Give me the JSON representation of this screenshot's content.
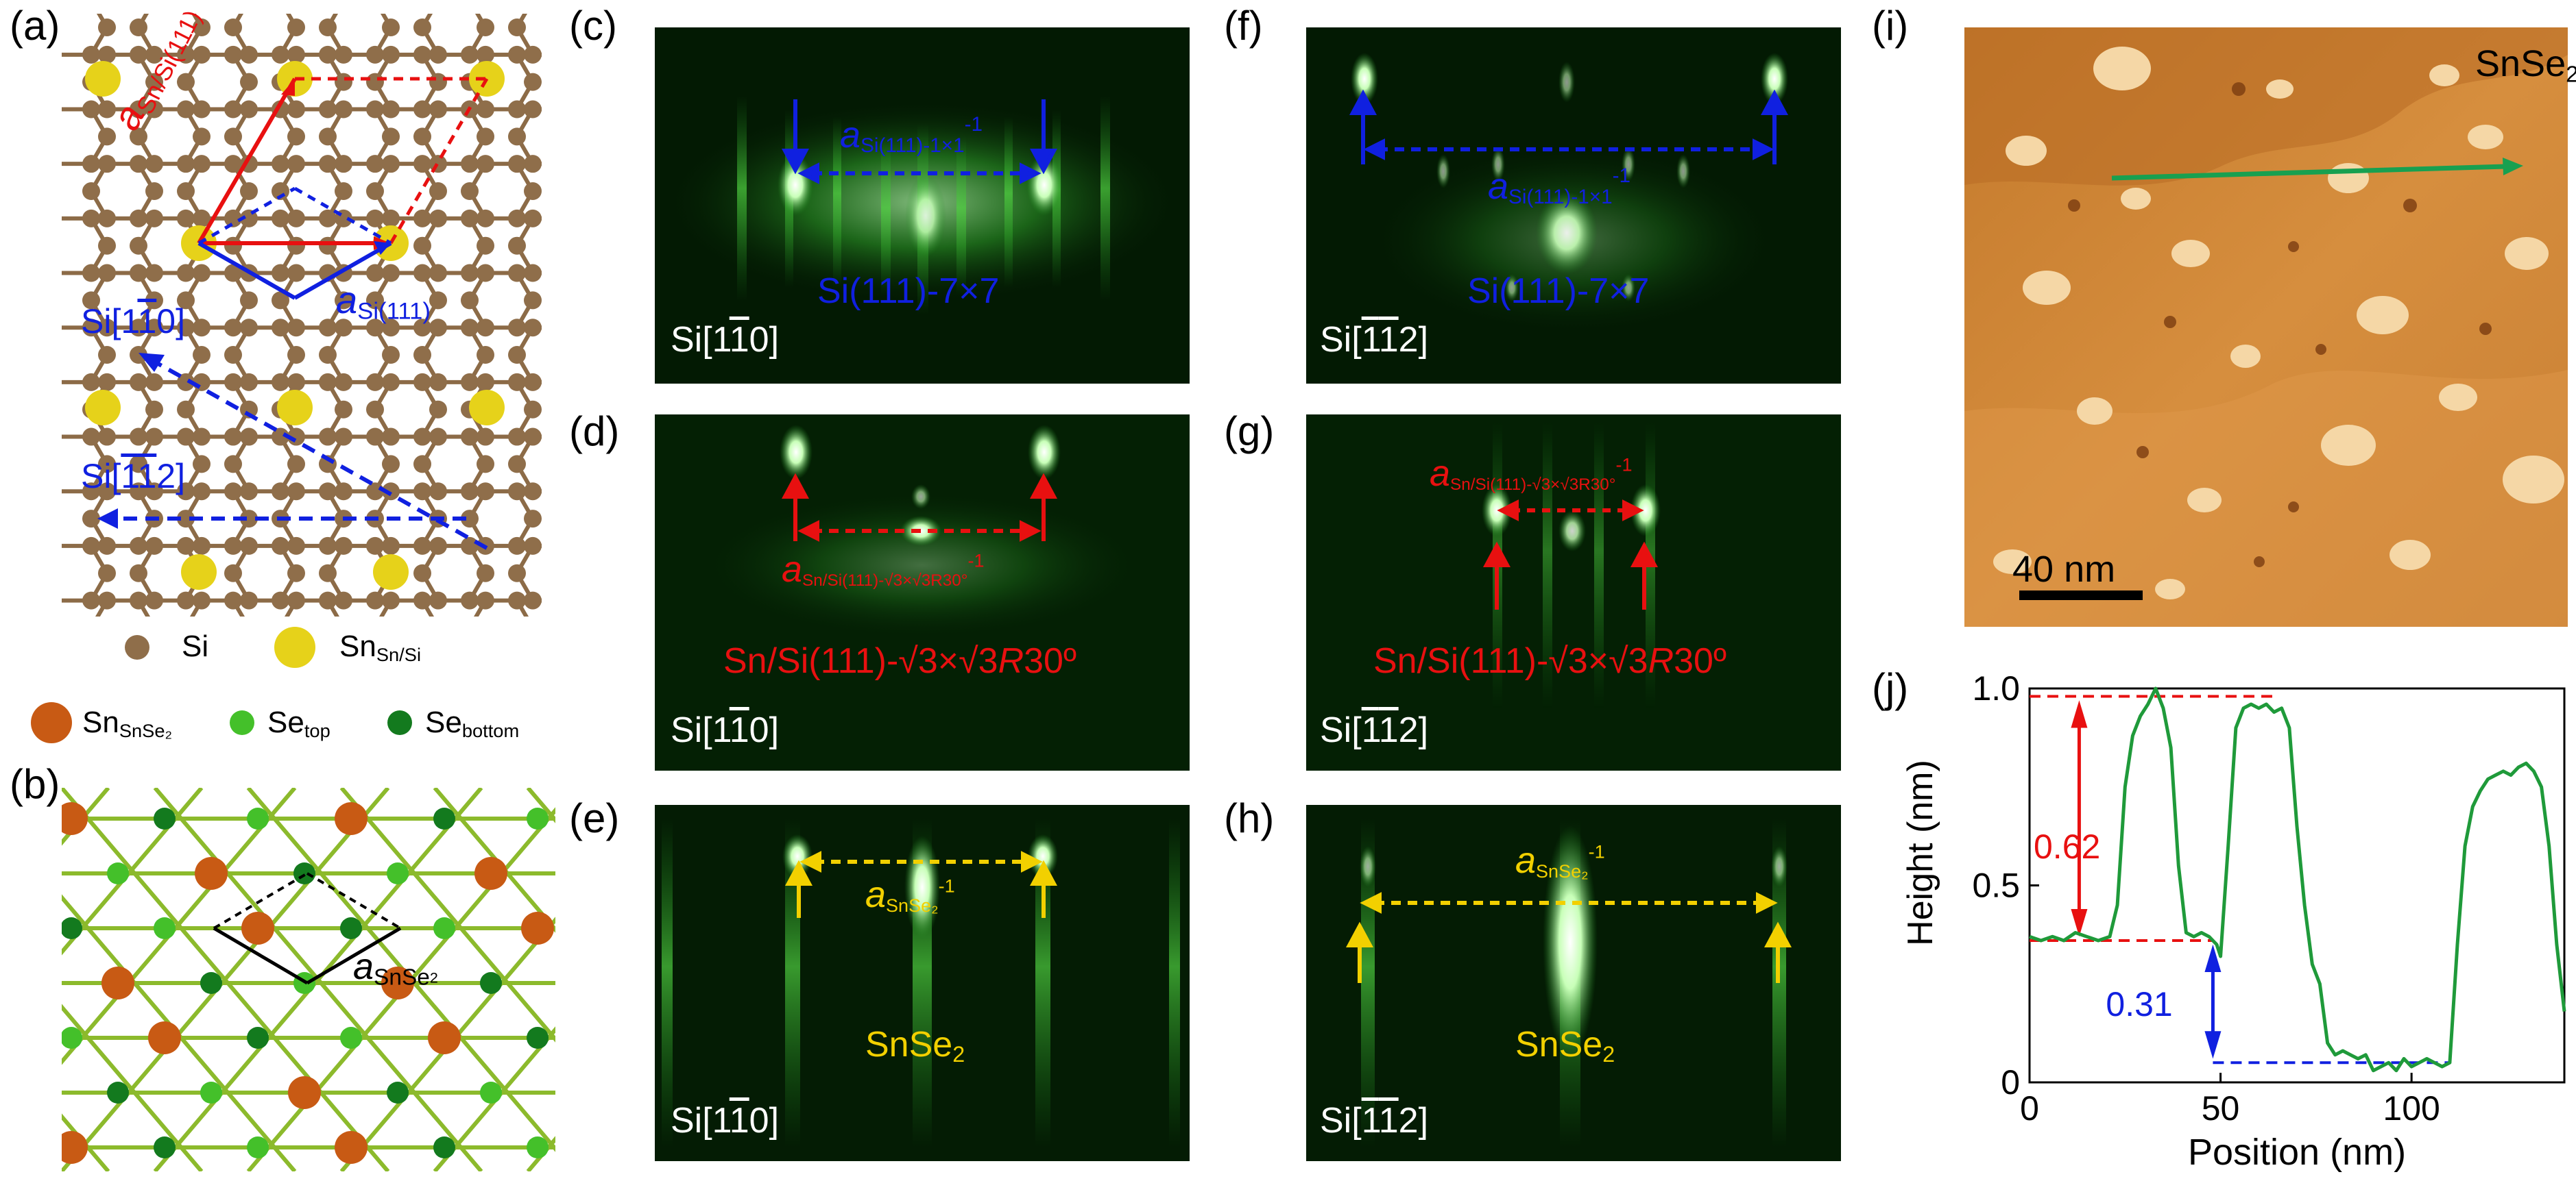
{
  "panel_labels": {
    "a": "(a)",
    "b": "(b)",
    "c": "(c)",
    "d": "(d)",
    "e": "(e)",
    "f": "(f)",
    "g": "(g)",
    "h": "(h)",
    "i": "(i)",
    "j": "(j)"
  },
  "panel_a": {
    "lattice_sn_si": "a",
    "lattice_sn_si_sub": "Sn/Si(111)",
    "lattice_si": "a",
    "lattice_si_sub": "Si(111)",
    "dir_1": "Si[1",
    "dir_1_bar": "1",
    "dir_1_end": "0]",
    "dir_2": "Si[",
    "dir_2_bar1": "1",
    "dir_2_bar2": "1",
    "dir_2_end": "2]",
    "legend": [
      {
        "text": "Si",
        "color": "#8f6e4a"
      },
      {
        "text": "Sn",
        "sub": "Sn/Si",
        "color": "#e6d21a"
      }
    ],
    "legend2": [
      {
        "text": "Sn",
        "sub": "SnSe₂",
        "color": "#c85a14"
      },
      {
        "text": "Se",
        "sub": "top",
        "color": "#44c02a"
      },
      {
        "text": "Se",
        "sub": "bottom",
        "color": "#137a1e"
      }
    ]
  },
  "panel_b": {
    "lattice": "a",
    "lattice_sub": "SnSe"
  },
  "rheed": {
    "c": {
      "dir_pre": "Si[1",
      "dir_bar": "1",
      "dir_post": "0]",
      "title": "Si(111)-7×7",
      "spacing": "a",
      "spacing_sub": "Si(111)-1×1",
      "spacing_sup": "-1",
      "color": "blue"
    },
    "d": {
      "dir_pre": "Si[1",
      "dir_bar": "1",
      "dir_post": "0]",
      "title_pre": "Sn/Si(111)-√3×√3",
      "title_r": "R",
      "title_post": "30º",
      "spacing": "a",
      "spacing_sub": "Sn/Si(111)-√3×√3R30°",
      "spacing_sup": "-1",
      "color": "red"
    },
    "e": {
      "dir_pre": "Si[1",
      "dir_bar": "1",
      "dir_post": "0]",
      "title": "SnSe",
      "title_sub": "2",
      "spacing": "a",
      "spacing_sub": "SnSe₂",
      "spacing_sup": "-1",
      "color": "yellow"
    },
    "f": {
      "dir_pre": "Si[",
      "dir_bar1": "1",
      "dir_bar2": "1",
      "dir_post": "2]",
      "title": "Si(111)-7×7",
      "spacing": "a",
      "spacing_sub": "Si(111)-1×1",
      "spacing_sup": "-1",
      "color": "blue"
    },
    "g": {
      "dir_pre": "Si[",
      "dir_bar1": "1",
      "dir_bar2": "1",
      "dir_post": "2]",
      "title_pre": "Sn/Si(111)-√3×√3",
      "title_r": "R",
      "title_post": "30º",
      "spacing": "a",
      "spacing_sub": "Sn/Si(111)-√3×√3R30°",
      "spacing_sup": "-1",
      "color": "red"
    },
    "h": {
      "dir_pre": "Si[",
      "dir_bar1": "1",
      "dir_bar2": "1",
      "dir_post": "2]",
      "title": "SnSe",
      "title_sub": "2",
      "spacing": "a",
      "spacing_sub": "SnSe₂",
      "spacing_sup": "-1",
      "color": "yellow"
    }
  },
  "stm": {
    "label": "SnSe",
    "label_sub": "2",
    "scalebar": "40 nm"
  },
  "annotations": {
    "step1": "0.62",
    "step2": "0.31"
  },
  "chart_data": {
    "type": "line",
    "title": "",
    "xlabel": "Position (nm)",
    "ylabel": "Height (nm)",
    "xlim": [
      0,
      140
    ],
    "ylim": [
      0,
      1.0
    ],
    "xticks": [
      0,
      50,
      100
    ],
    "yticks": [
      0,
      0.5,
      1.0
    ],
    "ytick_labels": [
      "0",
      "0.5",
      "1.0"
    ],
    "grid": false,
    "series": [
      {
        "color": "#1f9a3a",
        "x": [
          0,
          3,
          6,
          9,
          12,
          15,
          18,
          21,
          23,
          25,
          27,
          29,
          31,
          33,
          35,
          37,
          39,
          41,
          43,
          45,
          47,
          49,
          50,
          52,
          54,
          56,
          58,
          60,
          62,
          64,
          66,
          68,
          70,
          72,
          74,
          76,
          78,
          80,
          82,
          84,
          86,
          88,
          90,
          92,
          94,
          96,
          98,
          100,
          102,
          104,
          106,
          108,
          110,
          112,
          114,
          116,
          118,
          120,
          122,
          124,
          126,
          128,
          130,
          132,
          134,
          136,
          138,
          140
        ],
        "y": [
          0.37,
          0.36,
          0.37,
          0.36,
          0.38,
          0.37,
          0.36,
          0.37,
          0.45,
          0.75,
          0.88,
          0.93,
          0.96,
          1.0,
          0.95,
          0.85,
          0.55,
          0.38,
          0.37,
          0.38,
          0.37,
          0.35,
          0.32,
          0.6,
          0.9,
          0.95,
          0.96,
          0.95,
          0.96,
          0.94,
          0.95,
          0.9,
          0.65,
          0.45,
          0.3,
          0.25,
          0.1,
          0.07,
          0.08,
          0.07,
          0.06,
          0.07,
          0.03,
          0.04,
          0.05,
          0.03,
          0.06,
          0.04,
          0.05,
          0.06,
          0.05,
          0.04,
          0.05,
          0.35,
          0.6,
          0.7,
          0.74,
          0.77,
          0.78,
          0.79,
          0.78,
          0.8,
          0.81,
          0.79,
          0.75,
          0.6,
          0.35,
          0.18
        ]
      }
    ]
  }
}
